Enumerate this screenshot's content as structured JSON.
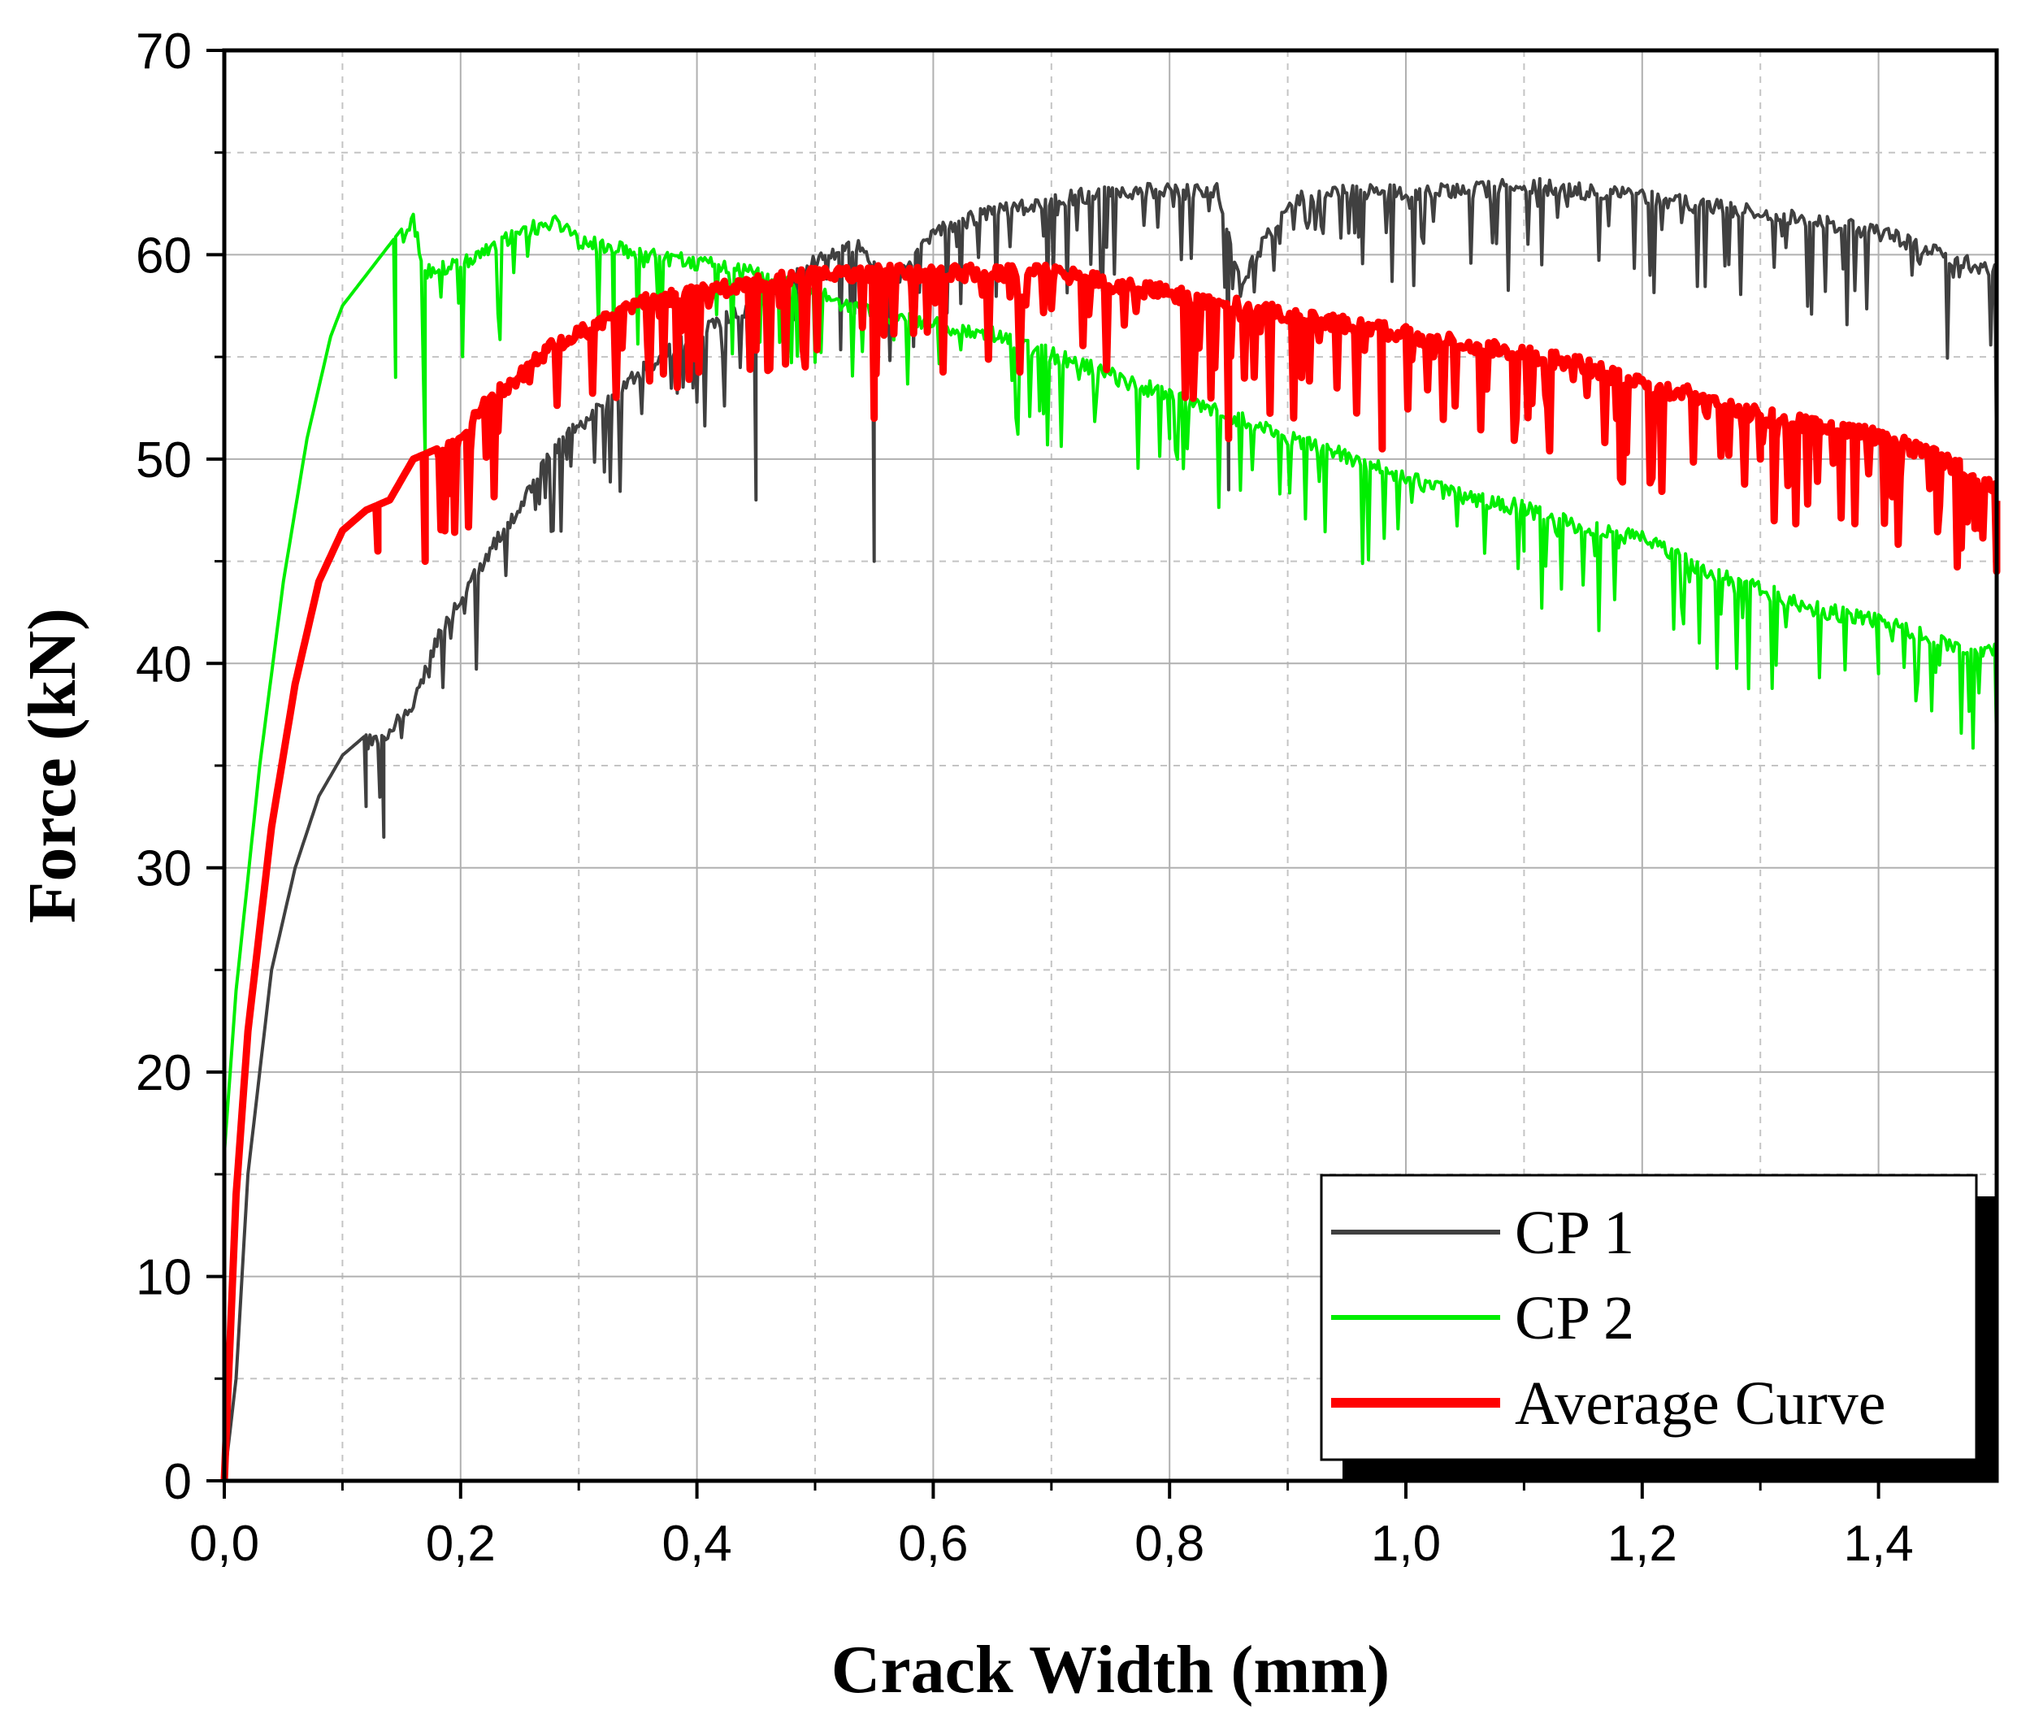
{
  "chart_data": {
    "type": "line",
    "title": "",
    "xlabel": "Crack Width (mm)",
    "ylabel": "Force (kN)",
    "xlim": [
      0.0,
      1.5
    ],
    "ylim": [
      0,
      70
    ],
    "xticks": [
      0.0,
      0.2,
      0.4,
      0.6,
      0.8,
      1.0,
      1.2,
      1.4
    ],
    "xtick_labels": [
      "0,0",
      "0,2",
      "0,4",
      "0,6",
      "0,8",
      "1,0",
      "1,2",
      "1,4"
    ],
    "yticks": [
      0,
      10,
      20,
      30,
      40,
      50,
      60,
      70
    ],
    "ytick_labels": [
      "0",
      "10",
      "20",
      "30",
      "40",
      "50",
      "60",
      "70"
    ],
    "grid": true,
    "legend_position": "bottom-right",
    "series": [
      {
        "name": "CP 1",
        "color": "#404040",
        "x": [
          0.0,
          0.01,
          0.02,
          0.04,
          0.06,
          0.08,
          0.1,
          0.12,
          0.14,
          0.16,
          0.18,
          0.2,
          0.22,
          0.25,
          0.28,
          0.3,
          0.33,
          0.36,
          0.4,
          0.45,
          0.5,
          0.54,
          0.56,
          0.6,
          0.65,
          0.7,
          0.75,
          0.8,
          0.84,
          0.86,
          0.9,
          0.95,
          1.0,
          1.05,
          1.1,
          1.15,
          1.2,
          1.25,
          1.3,
          1.35,
          1.4,
          1.45,
          1.5
        ],
        "y": [
          0,
          5,
          15,
          25,
          30,
          33.5,
          35.5,
          36.5,
          37,
          38.5,
          41.5,
          43.5,
          45.5,
          48,
          51,
          52,
          53.5,
          55,
          56.5,
          58,
          60,
          61,
          58.5,
          61.5,
          62.5,
          63,
          63.5,
          63.5,
          63.5,
          59,
          63,
          63.5,
          63.5,
          63.5,
          63.8,
          63.5,
          63.2,
          62.8,
          62.5,
          62,
          61.5,
          60.5,
          59.5
        ],
        "dips": [
          [
            0.12,
            33
          ],
          [
            0.135,
            31.5
          ],
          [
            0.29,
            50
          ],
          [
            0.45,
            48
          ],
          [
            0.55,
            45
          ],
          [
            0.85,
            48.5
          ],
          [
            1.5,
            50
          ]
        ]
      },
      {
        "name": "CP 2",
        "color": "#00ee00",
        "x": [
          0.0,
          0.01,
          0.03,
          0.05,
          0.07,
          0.09,
          0.1,
          0.12,
          0.14,
          0.16,
          0.17,
          0.2,
          0.25,
          0.28,
          0.3,
          0.35,
          0.4,
          0.45,
          0.5,
          0.55,
          0.6,
          0.65,
          0.7,
          0.75,
          0.8,
          0.85,
          0.9,
          0.95,
          1.0,
          1.05,
          1.1,
          1.15,
          1.2,
          1.25,
          1.3,
          1.35,
          1.4,
          1.45,
          1.5
        ],
        "y": [
          16,
          24,
          35,
          44,
          51,
          56,
          57.5,
          59,
          60.5,
          62,
          59.5,
          60,
          61.5,
          62,
          61,
          60.5,
          60,
          59.5,
          58.5,
          57.5,
          57,
          56.5,
          55.5,
          54.5,
          53.5,
          52.5,
          51.5,
          50.5,
          49.5,
          48.5,
          48,
          47,
          46.5,
          45,
          44,
          43,
          42.5,
          41.5,
          41
        ],
        "dips": [
          [
            0.145,
            54
          ],
          [
            0.17,
            50
          ],
          [
            0.33,
            54
          ],
          [
            0.8,
            51
          ],
          [
            1.1,
            45.5
          ],
          [
            1.4,
            39.5
          ],
          [
            1.5,
            36
          ]
        ]
      },
      {
        "name": "Average Curve",
        "color": "#ff0000",
        "x": [
          0.0,
          0.01,
          0.02,
          0.04,
          0.06,
          0.08,
          0.1,
          0.12,
          0.14,
          0.16,
          0.18,
          0.2,
          0.22,
          0.25,
          0.28,
          0.3,
          0.35,
          0.4,
          0.45,
          0.5,
          0.55,
          0.6,
          0.65,
          0.7,
          0.75,
          0.8,
          0.85,
          0.9,
          0.95,
          1.0,
          1.05,
          1.1,
          1.15,
          1.2,
          1.25,
          1.3,
          1.35,
          1.4,
          1.45,
          1.5
        ],
        "y": [
          0,
          14,
          22,
          32,
          39,
          44,
          46.5,
          47.5,
          48,
          50,
          50.5,
          51.5,
          53,
          54.5,
          56,
          56.5,
          58,
          58.5,
          59,
          59.5,
          59.5,
          59.5,
          59.5,
          59.5,
          59,
          58.5,
          58,
          57.5,
          57,
          56.5,
          56,
          55.5,
          55,
          54,
          53.5,
          52.5,
          52,
          51.5,
          50.5,
          49
        ],
        "dips": [
          [
            0.13,
            45.5
          ],
          [
            0.17,
            45
          ],
          [
            0.55,
            52
          ],
          [
            0.85,
            51
          ],
          [
            0.98,
            50.5
          ],
          [
            1.3,
            50
          ],
          [
            1.5,
            44.5
          ]
        ]
      }
    ]
  }
}
